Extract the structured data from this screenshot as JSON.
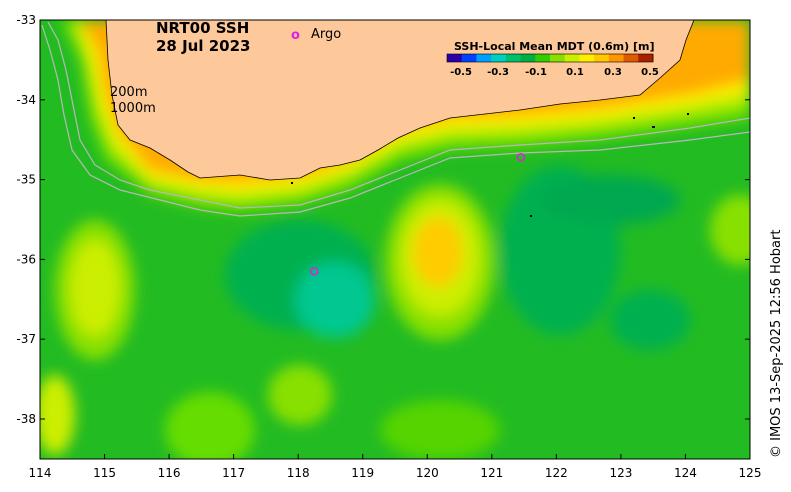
{
  "map": {
    "title_line1": "NRT00 SSH",
    "title_line2": "28 Jul 2023",
    "argo_symbol": "o",
    "argo_label": "Argo",
    "depth_label_1": "200m",
    "depth_label_2": "1000m",
    "credit": "© IMOS 13-Sep-2025 12:56 Hobart",
    "lon_range": [
      114,
      125
    ],
    "lat_range": [
      -38.5,
      -33
    ],
    "x_ticks": [
      "114",
      "115",
      "116",
      "117",
      "118",
      "119",
      "120",
      "121",
      "122",
      "123",
      "124",
      "125"
    ],
    "y_ticks": [
      "-33",
      "-34",
      "-35",
      "-36",
      "-37",
      "-38"
    ],
    "argo_floats": [
      {
        "lon": 118.25,
        "lat": -36.15
      },
      {
        "lon": 121.45,
        "lat": -34.72
      }
    ],
    "colors": {
      "land": "#fdc99a",
      "argo": "#e020e0"
    }
  },
  "colorbar": {
    "title": "SSH-Local Mean MDT (0.6m) [m]",
    "tick_labels": [
      "-0.5",
      "-0.3",
      "-0.1",
      "0.1",
      "0.3",
      "0.5"
    ],
    "colors": [
      "#2a00a8",
      "#0040ff",
      "#00a0ff",
      "#00d0c0",
      "#00c070",
      "#00b040",
      "#33cc00",
      "#88e000",
      "#ccee00",
      "#ffee00",
      "#ffc800",
      "#ff9600",
      "#e05a00",
      "#a82000"
    ]
  }
}
